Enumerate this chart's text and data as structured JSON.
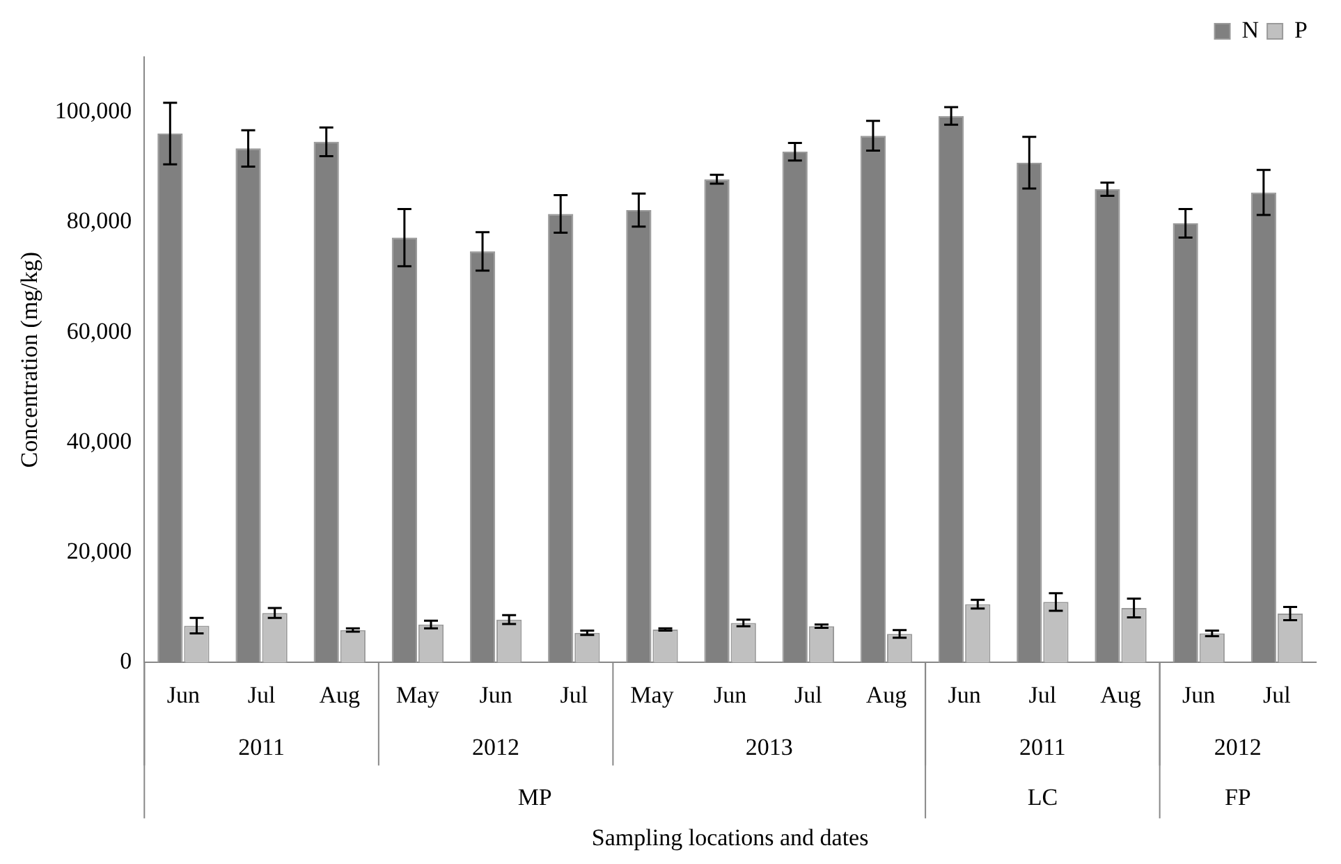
{
  "chart_data": {
    "type": "bar",
    "xlabel": "Sampling locations and dates",
    "ylabel": "Concentration (mg/kg)",
    "categories": [
      "Jun",
      "Jul",
      "Aug",
      "May",
      "Jun",
      "Jul",
      "May",
      "Jun",
      "Jul",
      "Aug",
      "Jun",
      "Jul",
      "Aug",
      "Jun",
      "Jul"
    ],
    "series": [
      {
        "name": "N",
        "color": "#808080",
        "values": [
          96100,
          93400,
          94600,
          77200,
          74700,
          81500,
          82200,
          87800,
          92800,
          95700,
          99300,
          90800,
          86000,
          79800,
          85400
        ],
        "errors": [
          5600,
          3300,
          2600,
          5200,
          3500,
          3400,
          3000,
          800,
          1600,
          2700,
          1600,
          4700,
          1200,
          2600,
          4100
        ]
      },
      {
        "name": "P",
        "color": "#c0c0c0",
        "values": [
          6700,
          9000,
          5900,
          6900,
          7800,
          5400,
          6000,
          7200,
          6600,
          5200,
          10600,
          11000,
          9900,
          5300,
          8900
        ],
        "errors": [
          1400,
          900,
          300,
          700,
          800,
          400,
          200,
          600,
          300,
          700,
          800,
          1600,
          1700,
          500,
          1200
        ]
      }
    ],
    "annotations": [
      "2011",
      "2012",
      "2013",
      "2011",
      "2012",
      "MP",
      "LC",
      "FP"
    ],
    "ylim": [
      0,
      110000
    ],
    "yticks": [
      0,
      {
        "value": 20000,
        "label": "20,000"
      },
      {
        "value": 40000,
        "label": "40,000"
      },
      {
        "value": 60000,
        "label": "60,000"
      },
      {
        "value": 80000,
        "label": "80,000"
      },
      {
        "value": 100000,
        "label": "100,000"
      }
    ],
    "grid": false,
    "legend": "top right"
  }
}
